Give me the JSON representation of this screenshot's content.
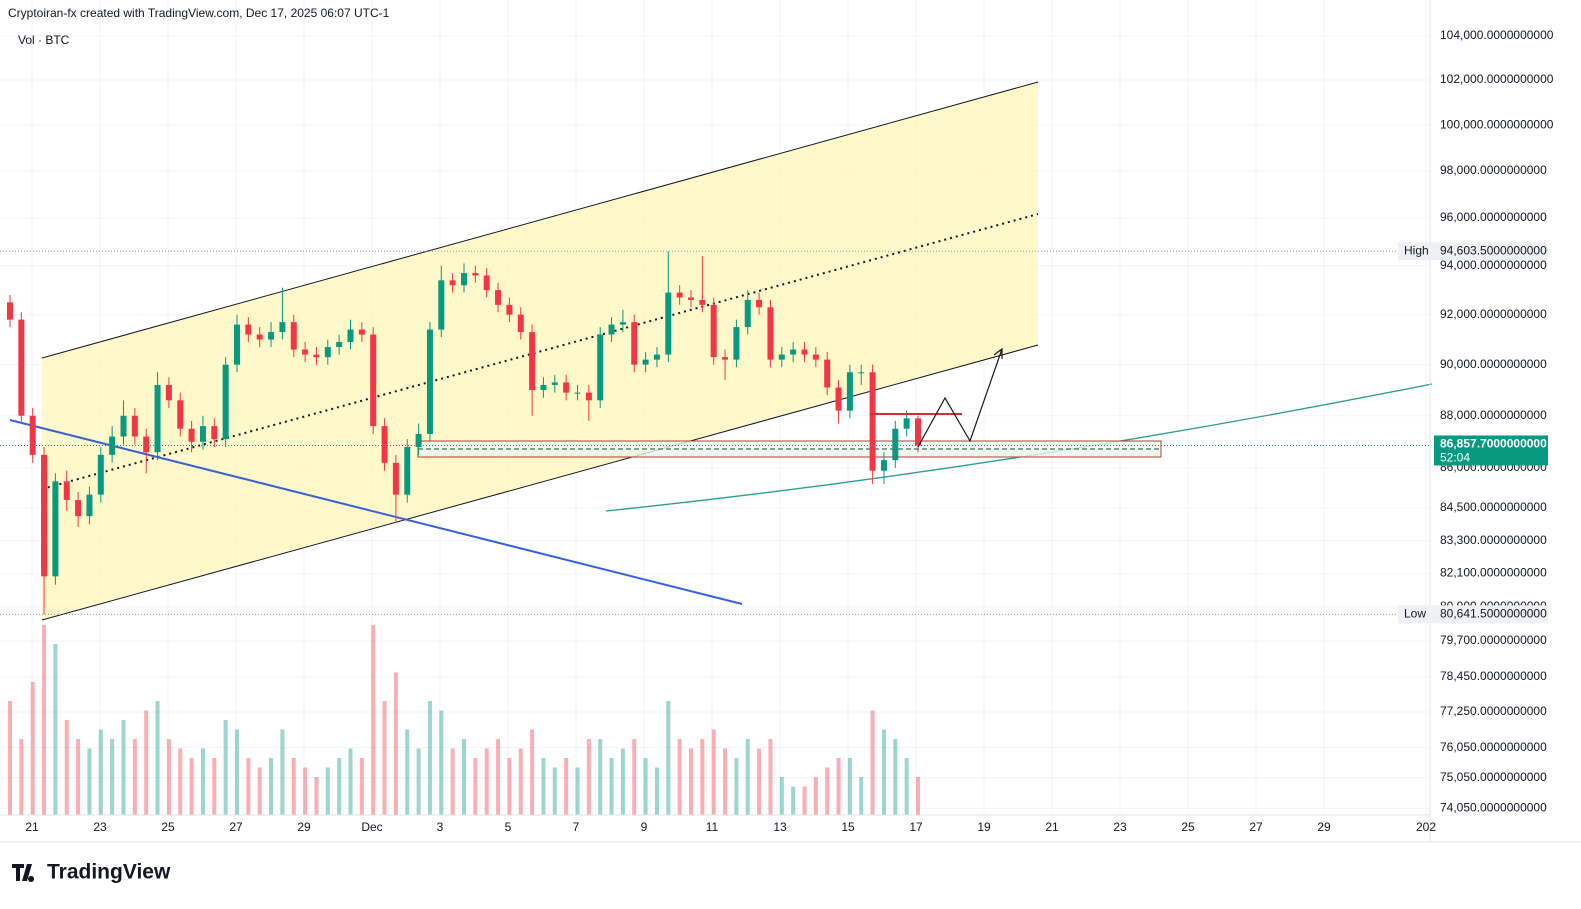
{
  "header": {
    "title": "Cryptoiran-fx created with TradingView.com, Dec 17, 2025 06:07 UTC-1"
  },
  "chart_data": {
    "type": "candlestick",
    "legend_label": "Vol · BTC",
    "log_scale": true,
    "grid": true,
    "up_color": "#089981",
    "down_color": "#f23645",
    "open": [
      92500,
      91800,
      88000,
      86500,
      82000,
      85500,
      84800,
      84200,
      85000,
      86500,
      87200,
      88000,
      87200,
      86600,
      89200,
      88600,
      87500,
      87000,
      87600,
      87100,
      90000,
      91600,
      91200,
      91000,
      91300,
      91700,
      90600,
      90400,
      90300,
      90700,
      90900,
      91400,
      91200,
      87600,
      86200,
      85000,
      86800,
      87300,
      91400,
      93400,
      93200,
      93700,
      93600,
      93000,
      92400,
      92000,
      91300,
      89000,
      89200,
      89300,
      88900,
      88900,
      88600,
      91200,
      91600,
      91700,
      90000,
      90200,
      90400,
      92900,
      92700,
      92600,
      92400,
      90300,
      90200,
      91500,
      92600,
      92300,
      90200,
      90400,
      90600,
      90400,
      90200,
      89100,
      88200,
      89700,
      89700,
      85900,
      86300,
      87500,
      87900
    ],
    "high": [
      92800,
      92100,
      88300,
      86800,
      85800,
      85900,
      85100,
      85300,
      86800,
      87600,
      88600,
      88300,
      87500,
      89700,
      89500,
      88900,
      87800,
      88000,
      87900,
      90300,
      92000,
      91900,
      91500,
      91700,
      93100,
      92000,
      90900,
      90700,
      91000,
      91200,
      91800,
      91700,
      91500,
      87900,
      86500,
      87100,
      87700,
      91700,
      94000,
      93700,
      94100,
      94000,
      93900,
      93300,
      92700,
      92300,
      91600,
      89500,
      89600,
      89600,
      89200,
      89200,
      91500,
      91900,
      92200,
      92000,
      90500,
      90700,
      94603.5,
      93200,
      93000,
      94400,
      92700,
      90600,
      91800,
      93000,
      92900,
      92600,
      90700,
      90900,
      90900,
      90700,
      90500,
      89400,
      90000,
      90000,
      90000,
      86600,
      87800,
      88200,
      88000
    ],
    "low": [
      91500,
      87700,
      86200,
      80641.5,
      81700,
      84400,
      83800,
      83900,
      84700,
      86200,
      86900,
      86900,
      85800,
      86300,
      88300,
      87200,
      86600,
      86700,
      86800,
      86800,
      89700,
      90900,
      90700,
      90700,
      91000,
      90300,
      90100,
      90000,
      90000,
      90400,
      90600,
      90900,
      87300,
      85900,
      84000,
      84700,
      86500,
      87000,
      91100,
      92900,
      92900,
      93300,
      92700,
      92100,
      91700,
      91000,
      88000,
      88700,
      88900,
      88600,
      88600,
      87800,
      88300,
      90900,
      91300,
      89700,
      89700,
      89900,
      90100,
      92400,
      92300,
      92100,
      90000,
      89400,
      89900,
      91200,
      92000,
      89900,
      89900,
      90100,
      90100,
      89900,
      88800,
      87700,
      87900,
      89200,
      85400,
      85400,
      86000,
      87200,
      86600
    ],
    "close": [
      91800,
      88000,
      86500,
      82000,
      85500,
      84800,
      84200,
      85000,
      86500,
      87200,
      88000,
      87200,
      86600,
      89200,
      88600,
      87500,
      87000,
      87600,
      87100,
      90000,
      91600,
      91200,
      91000,
      91300,
      91700,
      90600,
      90400,
      90300,
      90700,
      90900,
      91400,
      91200,
      87600,
      86200,
      85000,
      86800,
      87300,
      91400,
      93400,
      93200,
      93700,
      93600,
      93000,
      92400,
      92000,
      91300,
      89000,
      89200,
      89300,
      88900,
      88900,
      88600,
      91200,
      91600,
      91700,
      90000,
      90200,
      90400,
      92900,
      92700,
      92600,
      92400,
      90300,
      90200,
      91500,
      92600,
      92300,
      90200,
      90400,
      90600,
      90400,
      90200,
      89100,
      88200,
      89700,
      89700,
      85900,
      86300,
      87500,
      87900,
      86858
    ],
    "volume": [
      60,
      40,
      70,
      100,
      90,
      50,
      40,
      35,
      45,
      40,
      50,
      40,
      55,
      60,
      40,
      35,
      30,
      35,
      30,
      50,
      45,
      30,
      25,
      30,
      45,
      30,
      25,
      20,
      25,
      30,
      35,
      30,
      100,
      60,
      75,
      45,
      35,
      60,
      55,
      35,
      40,
      30,
      35,
      40,
      30,
      35,
      45,
      30,
      25,
      30,
      25,
      40,
      40,
      30,
      35,
      40,
      30,
      25,
      60,
      40,
      35,
      40,
      45,
      35,
      30,
      40,
      35,
      40,
      20,
      15,
      15,
      20,
      25,
      30,
      30,
      20,
      55,
      45,
      40,
      30,
      20
    ],
    "ylim": [
      73830,
      104500
    ],
    "yticks": [
      {
        "value": 104000,
        "label": "104,000.0000000000"
      },
      {
        "value": 102000,
        "label": "102,000.0000000000"
      },
      {
        "value": 100000,
        "label": "100,000.0000000000"
      },
      {
        "value": 98000,
        "label": "98,000.0000000000"
      },
      {
        "value": 96000,
        "label": "96,000.0000000000"
      },
      {
        "value": 94000,
        "label": "94,000.0000000000"
      },
      {
        "value": 92000,
        "label": "92,000.0000000000"
      },
      {
        "value": 90000,
        "label": "90,000.0000000000"
      },
      {
        "value": 88000,
        "label": "88,000.0000000000"
      },
      {
        "value": 86000,
        "label": "86,000.0000000000"
      },
      {
        "value": 84500,
        "label": "84,500.0000000000"
      },
      {
        "value": 83300,
        "label": "83,300.0000000000"
      },
      {
        "value": 82100,
        "label": "82,100.0000000000"
      },
      {
        "value": 80900,
        "label": "80,900.0000000000"
      },
      {
        "value": 79700,
        "label": "79,700.0000000000"
      },
      {
        "value": 78450,
        "label": "78,450.0000000000"
      },
      {
        "value": 77250,
        "label": "77,250.0000000000"
      },
      {
        "value": 76050,
        "label": "76,050.0000000000"
      },
      {
        "value": 75050,
        "label": "75,050.0000000000"
      },
      {
        "value": 74050,
        "label": "74,050.0000000000"
      }
    ],
    "xticks": [
      "21",
      "23",
      "25",
      "27",
      "29",
      "Dec",
      "3",
      "5",
      "7",
      "9",
      "11",
      "13",
      "15",
      "17",
      "19",
      "21",
      "23",
      "25",
      "27",
      "29",
      "202"
    ],
    "high_marker": {
      "label": "High",
      "value": 94603.5,
      "value_label": "94,603.5000000000"
    },
    "low_marker": {
      "label": "Low",
      "value": 80641.5,
      "value_label": "80,641.5000000000"
    },
    "last_price": {
      "value": 86857.7,
      "label": "86,857.7000000000",
      "countdown": "52:04"
    }
  },
  "footer": {
    "logo": "TradingView"
  }
}
